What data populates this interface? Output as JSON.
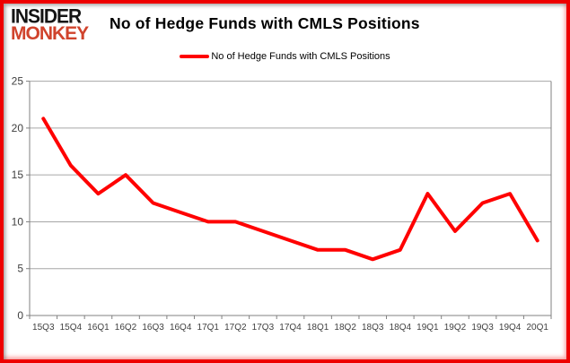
{
  "logo": {
    "line1": "INSIDER",
    "line2": "MONKEY",
    "line2_color": "#d0432c"
  },
  "header": {
    "title": "No of Hedge Funds with CMLS Positions"
  },
  "legend": {
    "label": "No of Hedge Funds with CMLS Positions",
    "line_color": "#ff0000"
  },
  "chart_data": {
    "type": "line",
    "title": "No of Hedge Funds with CMLS Positions",
    "categories": [
      "15Q3",
      "15Q4",
      "16Q1",
      "16Q2",
      "16Q3",
      "16Q4",
      "17Q1",
      "17Q2",
      "17Q3",
      "17Q4",
      "18Q1",
      "18Q2",
      "18Q3",
      "18Q4",
      "19Q1",
      "19Q2",
      "19Q3",
      "19Q4",
      "20Q1"
    ],
    "series": [
      {
        "name": "No of Hedge Funds with CMLS Positions",
        "color": "#ff0000",
        "values": [
          21,
          16,
          13,
          15,
          12,
          11,
          10,
          10,
          9,
          8,
          7,
          7,
          6,
          7,
          13,
          9,
          12,
          13,
          8
        ]
      }
    ],
    "xlabel": "",
    "ylabel": "",
    "ylim": [
      0,
      25
    ],
    "yticks": [
      0,
      5,
      10,
      15,
      20,
      25
    ],
    "grid": true,
    "legend_position": "top-center",
    "colors": {
      "gridline": "#a6a6a6",
      "axis": "#808080",
      "tick_label": "#3f3f3f",
      "plot_background": "#ffffff"
    }
  }
}
